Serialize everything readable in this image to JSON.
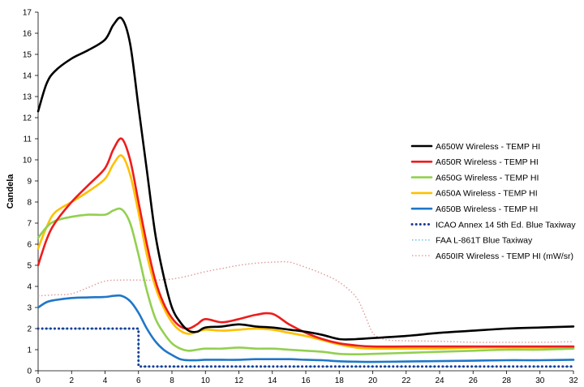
{
  "chart_data": {
    "type": "line",
    "ylabel": "Candela",
    "xlim": [
      0,
      32
    ],
    "ylim": [
      0,
      17
    ],
    "x_ticks": [
      0,
      2,
      4,
      6,
      8,
      10,
      12,
      14,
      16,
      18,
      20,
      22,
      24,
      26,
      28,
      30,
      32
    ],
    "y_ticks": [
      0,
      1,
      2,
      3,
      4,
      5,
      6,
      7,
      8,
      9,
      10,
      11,
      12,
      13,
      14,
      15,
      16,
      17
    ],
    "legend_position": "right",
    "grid": false,
    "series": [
      {
        "name": "A650W Wireless - TEMP HI",
        "color": "#000000",
        "style": "solid",
        "points": [
          [
            0,
            12.3
          ],
          [
            0.5,
            13.6
          ],
          [
            1,
            14.2
          ],
          [
            2,
            14.8
          ],
          [
            3,
            15.2
          ],
          [
            4,
            15.7
          ],
          [
            4.5,
            16.4
          ],
          [
            5,
            16.7
          ],
          [
            5.5,
            15.5
          ],
          [
            6,
            12.5
          ],
          [
            6.5,
            9.5
          ],
          [
            7,
            6.5
          ],
          [
            7.5,
            4.5
          ],
          [
            8,
            3.0
          ],
          [
            8.5,
            2.3
          ],
          [
            9,
            1.9
          ],
          [
            9.5,
            1.85
          ],
          [
            10,
            2.05
          ],
          [
            11,
            2.1
          ],
          [
            12,
            2.2
          ],
          [
            13,
            2.1
          ],
          [
            14,
            2.05
          ],
          [
            15,
            1.95
          ],
          [
            16,
            1.85
          ],
          [
            17,
            1.7
          ],
          [
            18,
            1.5
          ],
          [
            19,
            1.5
          ],
          [
            20,
            1.55
          ],
          [
            22,
            1.65
          ],
          [
            24,
            1.8
          ],
          [
            26,
            1.9
          ],
          [
            28,
            2.0
          ],
          [
            30,
            2.05
          ],
          [
            32,
            2.1
          ]
        ]
      },
      {
        "name": "A650R Wireless - TEMP HI",
        "color": "#ee1c1c",
        "style": "solid",
        "points": [
          [
            0,
            5.0
          ],
          [
            0.5,
            6.2
          ],
          [
            1,
            7.0
          ],
          [
            2,
            8.0
          ],
          [
            3,
            8.8
          ],
          [
            4,
            9.6
          ],
          [
            4.5,
            10.5
          ],
          [
            5,
            11.0
          ],
          [
            5.5,
            10.0
          ],
          [
            6,
            8.0
          ],
          [
            6.5,
            6.0
          ],
          [
            7,
            4.3
          ],
          [
            7.5,
            3.2
          ],
          [
            8,
            2.5
          ],
          [
            8.5,
            2.1
          ],
          [
            9,
            2.0
          ],
          [
            9.5,
            2.2
          ],
          [
            10,
            2.45
          ],
          [
            11,
            2.3
          ],
          [
            12,
            2.45
          ],
          [
            13,
            2.65
          ],
          [
            14,
            2.7
          ],
          [
            15,
            2.2
          ],
          [
            16,
            1.8
          ],
          [
            17,
            1.5
          ],
          [
            18,
            1.3
          ],
          [
            19,
            1.2
          ],
          [
            20,
            1.15
          ],
          [
            22,
            1.15
          ],
          [
            24,
            1.15
          ],
          [
            26,
            1.15
          ],
          [
            28,
            1.15
          ],
          [
            30,
            1.15
          ],
          [
            32,
            1.15
          ]
        ]
      },
      {
        "name": "A650G Wireless - TEMP HI",
        "color": "#92d050",
        "style": "solid",
        "points": [
          [
            0,
            6.3
          ],
          [
            0.5,
            6.8
          ],
          [
            1,
            7.1
          ],
          [
            2,
            7.3
          ],
          [
            3,
            7.4
          ],
          [
            4,
            7.4
          ],
          [
            4.5,
            7.6
          ],
          [
            5,
            7.65
          ],
          [
            5.5,
            7.0
          ],
          [
            6,
            5.5
          ],
          [
            6.5,
            3.8
          ],
          [
            7,
            2.5
          ],
          [
            7.5,
            1.8
          ],
          [
            8,
            1.3
          ],
          [
            8.5,
            1.05
          ],
          [
            9,
            0.95
          ],
          [
            9.5,
            1.0
          ],
          [
            10,
            1.05
          ],
          [
            11,
            1.05
          ],
          [
            12,
            1.1
          ],
          [
            13,
            1.05
          ],
          [
            14,
            1.05
          ],
          [
            15,
            1.0
          ],
          [
            16,
            0.95
          ],
          [
            17,
            0.9
          ],
          [
            18,
            0.8
          ],
          [
            19,
            0.78
          ],
          [
            20,
            0.8
          ],
          [
            22,
            0.85
          ],
          [
            24,
            0.9
          ],
          [
            26,
            0.95
          ],
          [
            28,
            1.0
          ],
          [
            30,
            1.0
          ],
          [
            32,
            1.05
          ]
        ]
      },
      {
        "name": "A650A Wireless - TEMP HI",
        "color": "#ffc000",
        "style": "solid",
        "points": [
          [
            0,
            5.8
          ],
          [
            0.5,
            6.8
          ],
          [
            1,
            7.5
          ],
          [
            2,
            8.0
          ],
          [
            3,
            8.5
          ],
          [
            4,
            9.1
          ],
          [
            4.5,
            9.8
          ],
          [
            5,
            10.2
          ],
          [
            5.5,
            9.3
          ],
          [
            6,
            7.5
          ],
          [
            6.5,
            5.5
          ],
          [
            7,
            4.0
          ],
          [
            7.5,
            3.0
          ],
          [
            8,
            2.3
          ],
          [
            8.5,
            1.9
          ],
          [
            9,
            1.75
          ],
          [
            9.5,
            1.85
          ],
          [
            10,
            1.95
          ],
          [
            11,
            1.9
          ],
          [
            12,
            1.95
          ],
          [
            13,
            2.0
          ],
          [
            14,
            1.95
          ],
          [
            15,
            1.8
          ],
          [
            16,
            1.65
          ],
          [
            17,
            1.45
          ],
          [
            18,
            1.25
          ],
          [
            19,
            1.1
          ],
          [
            20,
            1.05
          ],
          [
            22,
            1.05
          ],
          [
            24,
            1.05
          ],
          [
            26,
            1.1
          ],
          [
            28,
            1.1
          ],
          [
            30,
            1.1
          ],
          [
            32,
            1.1
          ]
        ]
      },
      {
        "name": "A650B Wireless - TEMP HI",
        "color": "#1f77c8",
        "style": "solid",
        "points": [
          [
            0,
            3.0
          ],
          [
            0.5,
            3.25
          ],
          [
            1,
            3.35
          ],
          [
            2,
            3.45
          ],
          [
            3,
            3.48
          ],
          [
            4,
            3.5
          ],
          [
            4.5,
            3.55
          ],
          [
            5,
            3.55
          ],
          [
            5.5,
            3.3
          ],
          [
            6,
            2.75
          ],
          [
            6.5,
            2.0
          ],
          [
            7,
            1.4
          ],
          [
            7.5,
            1.0
          ],
          [
            8,
            0.75
          ],
          [
            8.5,
            0.55
          ],
          [
            9,
            0.5
          ],
          [
            9.5,
            0.5
          ],
          [
            10,
            0.52
          ],
          [
            11,
            0.52
          ],
          [
            12,
            0.52
          ],
          [
            13,
            0.55
          ],
          [
            14,
            0.55
          ],
          [
            15,
            0.55
          ],
          [
            16,
            0.52
          ],
          [
            17,
            0.5
          ],
          [
            18,
            0.45
          ],
          [
            19,
            0.43
          ],
          [
            20,
            0.42
          ],
          [
            22,
            0.44
          ],
          [
            24,
            0.46
          ],
          [
            26,
            0.48
          ],
          [
            28,
            0.5
          ],
          [
            30,
            0.5
          ],
          [
            32,
            0.52
          ]
        ]
      },
      {
        "name": "ICAO Annex 14 5th Ed. Blue Taxiway",
        "color": "#1f3a93",
        "style": "dotted-thick",
        "points": [
          [
            0,
            2.0
          ],
          [
            6,
            2.0
          ],
          [
            6,
            0.2
          ],
          [
            32,
            0.2
          ]
        ]
      },
      {
        "name": "FAA L-861T Blue Taxiway",
        "color": "#5bc0de",
        "style": "dotted-thin",
        "points": [
          [
            0,
            2.0
          ],
          [
            6,
            2.0
          ],
          [
            6,
            0.2
          ],
          [
            32,
            0.2
          ]
        ]
      },
      {
        "name": "A650IR Wireless - TEMP HI (mW/sr)",
        "color": "#e09a9a",
        "style": "dotted-thin",
        "points": [
          [
            0,
            3.55
          ],
          [
            1,
            3.6
          ],
          [
            2,
            3.65
          ],
          [
            3,
            3.95
          ],
          [
            4,
            4.25
          ],
          [
            5,
            4.3
          ],
          [
            6,
            4.3
          ],
          [
            7,
            4.3
          ],
          [
            8,
            4.35
          ],
          [
            9,
            4.5
          ],
          [
            10,
            4.7
          ],
          [
            11,
            4.85
          ],
          [
            12,
            5.0
          ],
          [
            13,
            5.1
          ],
          [
            14,
            5.15
          ],
          [
            15,
            5.15
          ],
          [
            16,
            4.9
          ],
          [
            17,
            4.6
          ],
          [
            18,
            4.2
          ],
          [
            19,
            3.5
          ],
          [
            19.5,
            2.7
          ],
          [
            20,
            1.8
          ],
          [
            20.5,
            1.55
          ],
          [
            21,
            1.45
          ],
          [
            22,
            1.42
          ],
          [
            24,
            1.4
          ],
          [
            26,
            1.35
          ],
          [
            28,
            1.35
          ],
          [
            30,
            1.35
          ],
          [
            32,
            1.38
          ]
        ]
      }
    ]
  }
}
